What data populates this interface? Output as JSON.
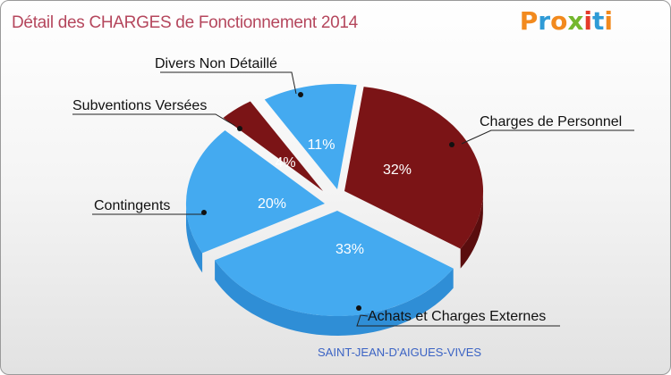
{
  "title": "Détail des CHARGES de Fonctionnement 2014",
  "logo": [
    "P",
    "r",
    "o",
    "x",
    "i",
    "t",
    "i"
  ],
  "logo_colors": [
    "#f28a1e",
    "#2f9bd6",
    "#f28a1e",
    "#74b72e",
    "#e53a2a",
    "#2f9bd6",
    "#f28a1e"
  ],
  "commune": "SAINT-JEAN-D'AIGUES-VIVES",
  "chart_data": {
    "type": "pie",
    "title": "Détail des CHARGES de Fonctionnement 2014",
    "slices": [
      {
        "label": "Charges de Personnel",
        "value": 32,
        "pct_label": "32%",
        "color": "#7b1416",
        "side": "#5a0d0e"
      },
      {
        "label": "Achats et Charges Externes",
        "value": 33,
        "pct_label": "33%",
        "color": "#44aaf0",
        "side": "#2f8ed6"
      },
      {
        "label": "Contingents",
        "value": 20,
        "pct_label": "20%",
        "color": "#44aaf0",
        "side": "#2f8ed6"
      },
      {
        "label": "Subventions Versées",
        "value": 4,
        "pct_label": "4%",
        "color": "#7b1416",
        "side": "#5a0d0e"
      },
      {
        "label": "Divers Non Détaillé",
        "value": 11,
        "pct_label": "11%",
        "color": "#44aaf0",
        "side": "#2f8ed6"
      }
    ]
  }
}
